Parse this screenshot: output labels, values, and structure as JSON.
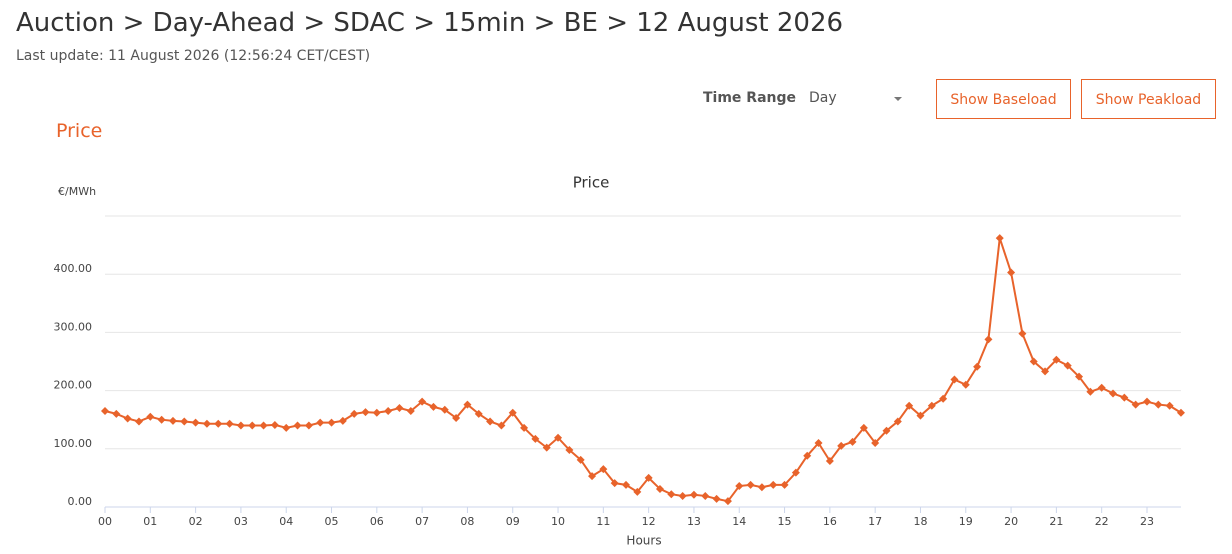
{
  "header": {
    "title": "Auction > Day-Ahead > SDAC > 15min > BE > 12 August 2026",
    "subtitle": "Last update: 11 August 2026 (12:56:24 CET/CEST)"
  },
  "controls": {
    "time_range_label": "Time Range",
    "time_range_value": "Day",
    "baseload_button": "Show Baseload",
    "peakload_button": "Show Peakload"
  },
  "section_title": "Price",
  "chart_data": {
    "type": "line",
    "title": "Price",
    "y_label": "€/MWh",
    "x_label": "Hours",
    "color": "#e8632b",
    "grid": true,
    "categories": [
      "00",
      null,
      null,
      null,
      "01",
      null,
      null,
      null,
      "02",
      null,
      null,
      null,
      "03",
      null,
      null,
      null,
      "04",
      null,
      null,
      null,
      "05",
      null,
      null,
      null,
      "06",
      null,
      null,
      null,
      "07",
      null,
      null,
      null,
      "08",
      null,
      null,
      null,
      "09",
      null,
      null,
      null,
      "10",
      null,
      null,
      null,
      "11",
      null,
      null,
      null,
      "12",
      null,
      null,
      null,
      "13",
      null,
      null,
      null,
      "14",
      null,
      null,
      null,
      "15",
      null,
      null,
      null,
      "16",
      null,
      null,
      null,
      "17",
      null,
      null,
      null,
      "18",
      null,
      null,
      null,
      "19",
      null,
      null,
      null,
      "20",
      null,
      null,
      null,
      "21",
      null,
      null,
      null,
      "22",
      null,
      null,
      null,
      "23",
      null,
      null,
      null
    ],
    "values": [
      165,
      160,
      152,
      147,
      155,
      150,
      148,
      147,
      145,
      143,
      143,
      143,
      140,
      140,
      140,
      141,
      136,
      140,
      140,
      145,
      145,
      148,
      160,
      163,
      162,
      165,
      170,
      165,
      181,
      172,
      167,
      153,
      176,
      160,
      147,
      140,
      162,
      136,
      117,
      102,
      119,
      98,
      81,
      53,
      65,
      41,
      38,
      26,
      50,
      31,
      22,
      19,
      21,
      19,
      14,
      10,
      36,
      38,
      34,
      38,
      38,
      59,
      88,
      110,
      79,
      105,
      112,
      136,
      110,
      131,
      147,
      174,
      157,
      174,
      186,
      219,
      210,
      241,
      288,
      462,
      403,
      298,
      250,
      233,
      253,
      243,
      224,
      198,
      205,
      195,
      188,
      176,
      181,
      176,
      174,
      162
    ],
    "ylim": [
      0,
      500
    ],
    "yticks": [
      {
        "value": 0,
        "label": "0.00"
      },
      {
        "value": 100,
        "label": "100.00"
      },
      {
        "value": 200,
        "label": "200.00"
      },
      {
        "value": 300,
        "label": "300.00"
      },
      {
        "value": 400,
        "label": "400.00"
      }
    ]
  }
}
